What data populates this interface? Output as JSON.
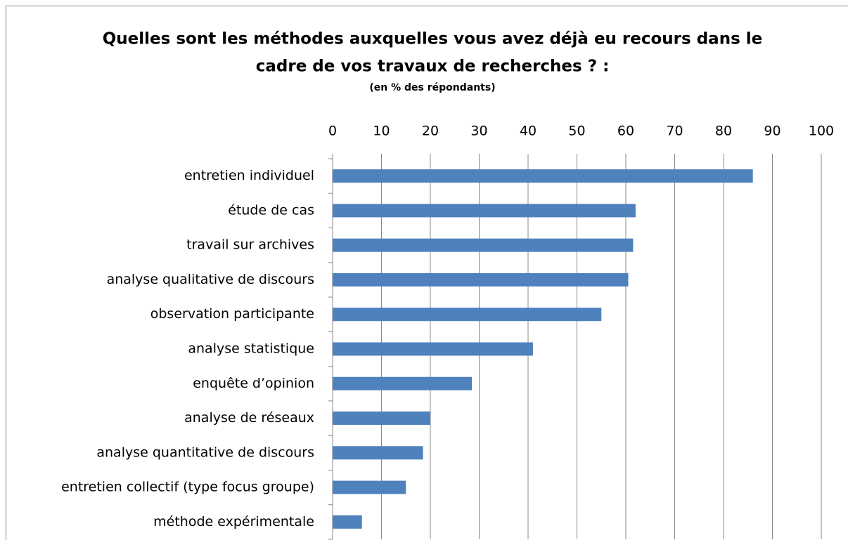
{
  "chart_data": {
    "type": "bar",
    "orientation": "horizontal",
    "title": [
      "Quelles sont les méthodes auxquelles vous avez déjà eu recours dans le",
      "cadre de vos travaux de recherches ? :"
    ],
    "subtitle": "(en % des répondants)",
    "categories": [
      "entretien individuel",
      "étude de cas",
      "travail sur archives",
      "analyse qualitative de discours",
      "observation participante",
      "analyse statistique",
      "enquête d’opinion",
      "analyse de réseaux",
      "analyse quantitative de discours",
      "entretien collectif (type focus groupe)",
      "méthode expérimentale"
    ],
    "values": [
      86,
      62,
      61.5,
      60.5,
      55,
      41,
      28.5,
      20,
      18.5,
      15,
      6
    ],
    "color": "#4f81bd",
    "xlim": [
      0,
      100
    ],
    "xticks": [
      0,
      10,
      20,
      30,
      40,
      50,
      60,
      70,
      80,
      90,
      100
    ],
    "grid": true
  }
}
